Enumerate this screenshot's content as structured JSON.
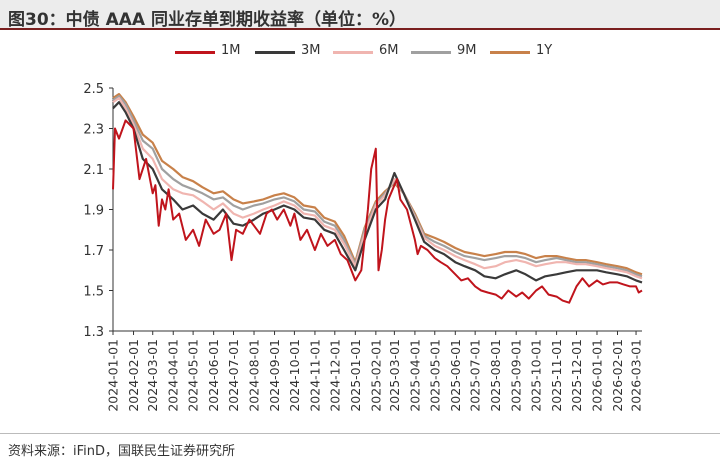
{
  "title": "图30：中债 AAA 同业存单到期收益率（单位：%）",
  "source": "资料来源：iFinD，国联民生证券研究所",
  "chart_data": {
    "type": "line",
    "title": "",
    "xlabel": "",
    "ylabel": "",
    "ylim": [
      1.3,
      2.5
    ],
    "yticks": [
      1.3,
      1.5,
      1.7,
      1.9,
      2.1,
      2.3,
      2.5
    ],
    "xticks": [
      "2024-01-01",
      "2024-02-01",
      "2024-03-01",
      "2024-04-01",
      "2024-05-01",
      "2024-06-01",
      "2024-07-01",
      "2024-08-01",
      "2024-09-01",
      "2024-10-01",
      "2024-11-01",
      "2024-12-01",
      "2025-01-01",
      "2025-02-01",
      "2025-03-01",
      "2025-04-01",
      "2025-05-01",
      "2025-06-01",
      "2025-07-01",
      "2025-08-01",
      "2025-09-01",
      "2025-10-01",
      "2025-11-01",
      "2025-12-01",
      "2026-01-01",
      "2026-02-01",
      "2026-03-01"
    ],
    "xrange": [
      "2024-01-01",
      "2026-03-10"
    ],
    "grid": false,
    "legend_position": "top",
    "series": [
      {
        "name": "1M",
        "color": "#c0141c",
        "x": [
          "2024-01-01",
          "2024-01-04",
          "2024-01-10",
          "2024-01-20",
          "2024-02-01",
          "2024-02-10",
          "2024-02-20",
          "2024-03-01",
          "2024-03-05",
          "2024-03-10",
          "2024-03-15",
          "2024-03-20",
          "2024-03-25",
          "2024-04-01",
          "2024-04-10",
          "2024-04-20",
          "2024-05-01",
          "2024-05-10",
          "2024-05-20",
          "2024-06-01",
          "2024-06-10",
          "2024-06-20",
          "2024-06-28",
          "2024-07-05",
          "2024-07-15",
          "2024-07-25",
          "2024-08-01",
          "2024-08-10",
          "2024-08-20",
          "2024-08-28",
          "2024-09-05",
          "2024-09-15",
          "2024-09-25",
          "2024-10-01",
          "2024-10-10",
          "2024-10-20",
          "2024-11-01",
          "2024-11-10",
          "2024-11-20",
          "2024-12-01",
          "2024-12-10",
          "2024-12-20",
          "2025-01-01",
          "2025-01-10",
          "2025-01-15",
          "2025-01-20",
          "2025-01-25",
          "2025-02-01",
          "2025-02-05",
          "2025-02-10",
          "2025-02-15",
          "2025-02-20",
          "2025-03-01",
          "2025-03-05",
          "2025-03-10",
          "2025-03-20",
          "2025-04-01",
          "2025-04-05",
          "2025-04-10",
          "2025-04-20",
          "2025-05-01",
          "2025-05-10",
          "2025-05-20",
          "2025-06-01",
          "2025-06-10",
          "2025-06-20",
          "2025-07-01",
          "2025-07-10",
          "2025-07-20",
          "2025-08-01",
          "2025-08-10",
          "2025-08-20",
          "2025-09-01",
          "2025-09-10",
          "2025-09-20",
          "2025-10-01",
          "2025-10-10",
          "2025-10-20",
          "2025-11-01",
          "2025-11-10",
          "2025-11-20",
          "2025-12-01",
          "2025-12-10",
          "2025-12-20",
          "2026-01-01",
          "2026-01-10",
          "2026-01-20",
          "2026-02-01",
          "2026-02-10",
          "2026-02-20",
          "2026-03-01",
          "2026-03-05",
          "2026-03-10"
        ],
        "values": [
          2.0,
          2.3,
          2.25,
          2.34,
          2.3,
          2.05,
          2.15,
          1.98,
          2.02,
          1.82,
          1.95,
          1.9,
          2.0,
          1.85,
          1.88,
          1.75,
          1.8,
          1.72,
          1.85,
          1.78,
          1.8,
          1.88,
          1.65,
          1.8,
          1.78,
          1.85,
          1.82,
          1.78,
          1.88,
          1.9,
          1.85,
          1.9,
          1.82,
          1.88,
          1.75,
          1.8,
          1.7,
          1.78,
          1.72,
          1.75,
          1.68,
          1.65,
          1.55,
          1.6,
          1.75,
          1.9,
          2.1,
          2.2,
          1.6,
          1.7,
          1.85,
          1.95,
          2.02,
          2.05,
          1.95,
          1.9,
          1.75,
          1.68,
          1.72,
          1.7,
          1.66,
          1.64,
          1.62,
          1.58,
          1.55,
          1.56,
          1.52,
          1.5,
          1.49,
          1.48,
          1.46,
          1.5,
          1.47,
          1.49,
          1.46,
          1.5,
          1.52,
          1.48,
          1.47,
          1.45,
          1.44,
          1.52,
          1.56,
          1.52,
          1.55,
          1.53,
          1.54,
          1.54,
          1.53,
          1.52,
          1.52,
          1.49,
          1.5
        ]
      },
      {
        "name": "3M",
        "color": "#3a3a3a",
        "x": [
          "2024-01-01",
          "2024-01-10",
          "2024-01-20",
          "2024-02-01",
          "2024-02-15",
          "2024-03-01",
          "2024-03-15",
          "2024-04-01",
          "2024-04-15",
          "2024-05-01",
          "2024-05-15",
          "2024-06-01",
          "2024-06-15",
          "2024-07-01",
          "2024-07-15",
          "2024-08-01",
          "2024-08-15",
          "2024-09-01",
          "2024-09-15",
          "2024-10-01",
          "2024-10-15",
          "2024-11-01",
          "2024-11-15",
          "2024-12-01",
          "2024-12-15",
          "2025-01-01",
          "2025-01-15",
          "2025-02-01",
          "2025-02-15",
          "2025-03-01",
          "2025-03-15",
          "2025-04-01",
          "2025-04-15",
          "2025-05-01",
          "2025-05-15",
          "2025-06-01",
          "2025-06-15",
          "2025-07-01",
          "2025-07-15",
          "2025-08-01",
          "2025-08-15",
          "2025-09-01",
          "2025-09-15",
          "2025-10-01",
          "2025-10-15",
          "2025-11-01",
          "2025-11-15",
          "2025-12-01",
          "2025-12-15",
          "2026-01-01",
          "2026-01-15",
          "2026-02-01",
          "2026-02-15",
          "2026-03-01",
          "2026-03-10"
        ],
        "values": [
          2.4,
          2.43,
          2.38,
          2.3,
          2.15,
          2.1,
          2.0,
          1.95,
          1.9,
          1.92,
          1.88,
          1.85,
          1.9,
          1.83,
          1.82,
          1.85,
          1.88,
          1.9,
          1.92,
          1.9,
          1.86,
          1.85,
          1.8,
          1.78,
          1.7,
          1.6,
          1.75,
          1.9,
          1.95,
          2.08,
          1.98,
          1.85,
          1.74,
          1.7,
          1.68,
          1.64,
          1.62,
          1.6,
          1.57,
          1.56,
          1.58,
          1.6,
          1.58,
          1.55,
          1.57,
          1.58,
          1.59,
          1.6,
          1.6,
          1.6,
          1.59,
          1.58,
          1.57,
          1.55,
          1.54
        ]
      },
      {
        "name": "6M",
        "color": "#f0b5b0",
        "x": [
          "2024-01-01",
          "2024-01-10",
          "2024-01-20",
          "2024-02-01",
          "2024-02-15",
          "2024-03-01",
          "2024-03-15",
          "2024-04-01",
          "2024-04-15",
          "2024-05-01",
          "2024-05-15",
          "2024-06-01",
          "2024-06-15",
          "2024-07-01",
          "2024-07-15",
          "2024-08-01",
          "2024-08-15",
          "2024-09-01",
          "2024-09-15",
          "2024-10-01",
          "2024-10-15",
          "2024-11-01",
          "2024-11-15",
          "2024-12-01",
          "2024-12-15",
          "2025-01-01",
          "2025-01-15",
          "2025-02-01",
          "2025-02-15",
          "2025-03-01",
          "2025-03-15",
          "2025-04-01",
          "2025-04-15",
          "2025-05-01",
          "2025-05-15",
          "2025-06-01",
          "2025-06-15",
          "2025-07-01",
          "2025-07-15",
          "2025-08-01",
          "2025-08-15",
          "2025-09-01",
          "2025-09-15",
          "2025-10-01",
          "2025-10-15",
          "2025-11-01",
          "2025-11-15",
          "2025-12-01",
          "2025-12-15",
          "2026-01-01",
          "2026-01-15",
          "2026-02-01",
          "2026-02-15",
          "2026-03-01",
          "2026-03-10"
        ],
        "values": [
          2.43,
          2.45,
          2.4,
          2.32,
          2.2,
          2.15,
          2.05,
          2.0,
          1.98,
          1.97,
          1.94,
          1.9,
          1.93,
          1.88,
          1.86,
          1.88,
          1.9,
          1.92,
          1.94,
          1.92,
          1.88,
          1.87,
          1.82,
          1.8,
          1.73,
          1.62,
          1.78,
          1.92,
          1.97,
          2.05,
          1.98,
          1.86,
          1.76,
          1.72,
          1.7,
          1.67,
          1.65,
          1.63,
          1.61,
          1.62,
          1.64,
          1.65,
          1.64,
          1.62,
          1.63,
          1.64,
          1.64,
          1.63,
          1.63,
          1.62,
          1.61,
          1.6,
          1.59,
          1.57,
          1.56
        ]
      },
      {
        "name": "9M",
        "color": "#a0a0a0",
        "x": [
          "2024-01-01",
          "2024-01-10",
          "2024-01-20",
          "2024-02-01",
          "2024-02-15",
          "2024-03-01",
          "2024-03-15",
          "2024-04-01",
          "2024-04-15",
          "2024-05-01",
          "2024-05-15",
          "2024-06-01",
          "2024-06-15",
          "2024-07-01",
          "2024-07-15",
          "2024-08-01",
          "2024-08-15",
          "2024-09-01",
          "2024-09-15",
          "2024-10-01",
          "2024-10-15",
          "2024-11-01",
          "2024-11-15",
          "2024-12-01",
          "2024-12-15",
          "2025-01-01",
          "2025-01-15",
          "2025-02-01",
          "2025-02-15",
          "2025-03-01",
          "2025-03-15",
          "2025-04-01",
          "2025-04-15",
          "2025-05-01",
          "2025-05-15",
          "2025-06-01",
          "2025-06-15",
          "2025-07-01",
          "2025-07-15",
          "2025-08-01",
          "2025-08-15",
          "2025-09-01",
          "2025-09-15",
          "2025-10-01",
          "2025-10-15",
          "2025-11-01",
          "2025-11-15",
          "2025-12-01",
          "2025-12-15",
          "2026-01-01",
          "2026-01-15",
          "2026-02-01",
          "2026-02-15",
          "2026-03-01",
          "2026-03-10"
        ],
        "values": [
          2.44,
          2.46,
          2.42,
          2.34,
          2.24,
          2.2,
          2.1,
          2.05,
          2.02,
          2.0,
          1.98,
          1.95,
          1.96,
          1.92,
          1.9,
          1.92,
          1.93,
          1.95,
          1.96,
          1.94,
          1.9,
          1.89,
          1.84,
          1.82,
          1.75,
          1.63,
          1.8,
          1.93,
          1.98,
          2.04,
          1.98,
          1.87,
          1.77,
          1.74,
          1.72,
          1.69,
          1.67,
          1.66,
          1.65,
          1.66,
          1.67,
          1.67,
          1.66,
          1.64,
          1.65,
          1.66,
          1.65,
          1.64,
          1.64,
          1.63,
          1.62,
          1.61,
          1.6,
          1.58,
          1.57
        ]
      },
      {
        "name": "1Y",
        "color": "#c8814a",
        "x": [
          "2024-01-01",
          "2024-01-10",
          "2024-01-20",
          "2024-02-01",
          "2024-02-15",
          "2024-03-01",
          "2024-03-15",
          "2024-04-01",
          "2024-04-15",
          "2024-05-01",
          "2024-05-15",
          "2024-06-01",
          "2024-06-15",
          "2024-07-01",
          "2024-07-15",
          "2024-08-01",
          "2024-08-15",
          "2024-09-01",
          "2024-09-15",
          "2024-10-01",
          "2024-10-15",
          "2024-11-01",
          "2024-11-15",
          "2024-12-01",
          "2024-12-15",
          "2025-01-01",
          "2025-01-15",
          "2025-02-01",
          "2025-02-15",
          "2025-03-01",
          "2025-03-15",
          "2025-04-01",
          "2025-04-15",
          "2025-05-01",
          "2025-05-15",
          "2025-06-01",
          "2025-06-15",
          "2025-07-01",
          "2025-07-15",
          "2025-08-01",
          "2025-08-15",
          "2025-09-01",
          "2025-09-15",
          "2025-10-01",
          "2025-10-15",
          "2025-11-01",
          "2025-11-15",
          "2025-12-01",
          "2025-12-15",
          "2026-01-01",
          "2026-01-15",
          "2026-02-01",
          "2026-02-15",
          "2026-03-01",
          "2026-03-10"
        ],
        "values": [
          2.45,
          2.47,
          2.43,
          2.36,
          2.27,
          2.23,
          2.14,
          2.1,
          2.06,
          2.04,
          2.01,
          1.98,
          1.99,
          1.95,
          1.93,
          1.94,
          1.95,
          1.97,
          1.98,
          1.96,
          1.92,
          1.91,
          1.86,
          1.84,
          1.77,
          1.64,
          1.81,
          1.94,
          1.99,
          2.03,
          1.98,
          1.88,
          1.78,
          1.76,
          1.74,
          1.71,
          1.69,
          1.68,
          1.67,
          1.68,
          1.69,
          1.69,
          1.68,
          1.66,
          1.67,
          1.67,
          1.66,
          1.65,
          1.65,
          1.64,
          1.63,
          1.62,
          1.61,
          1.59,
          1.58
        ]
      }
    ]
  }
}
